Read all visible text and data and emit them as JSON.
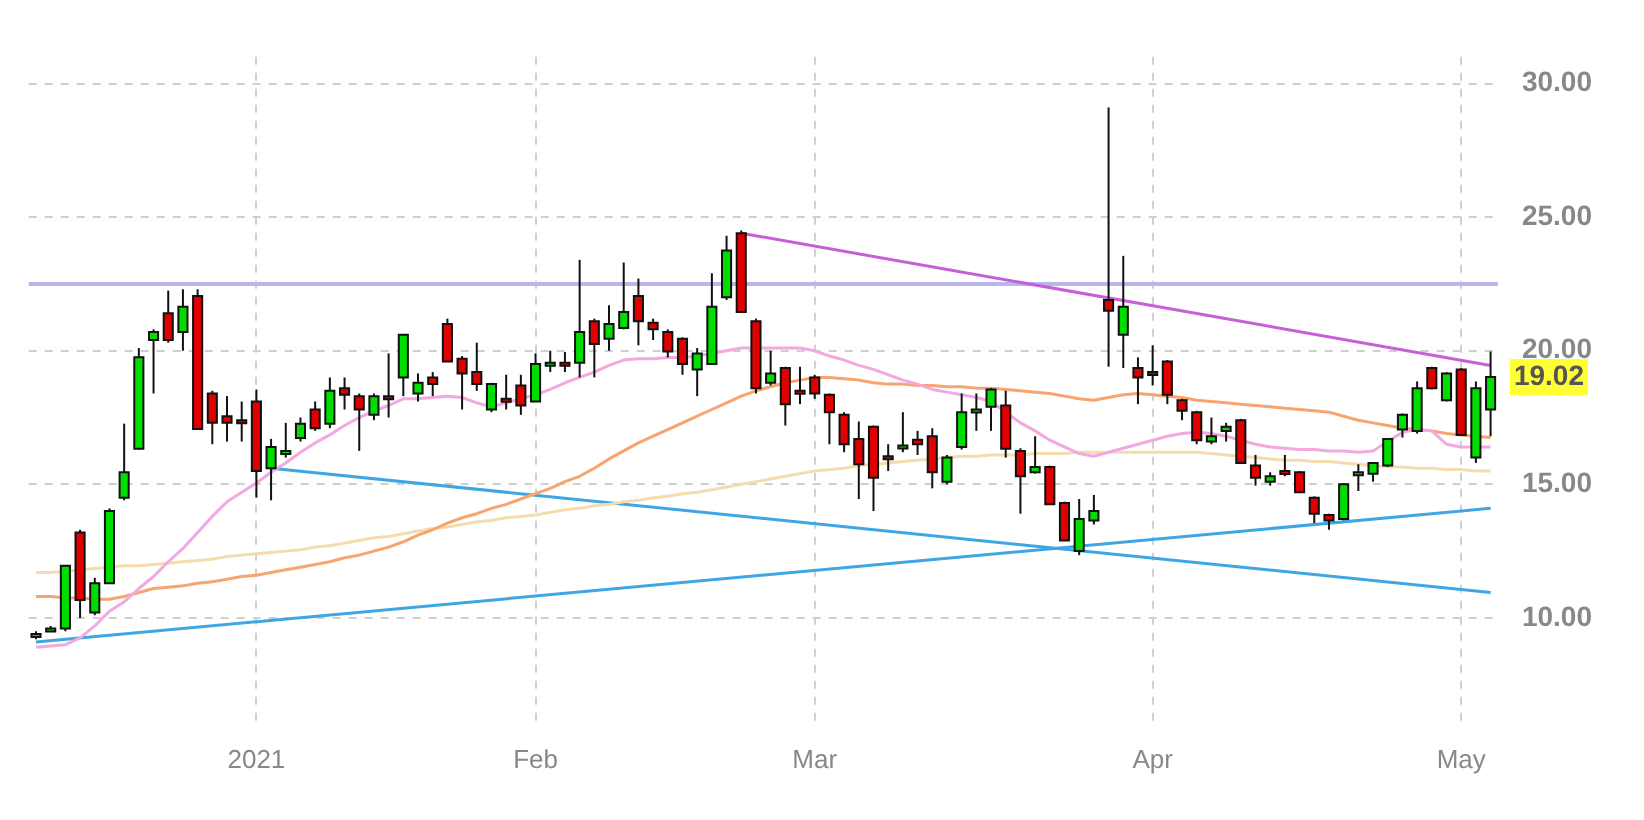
{
  "chart_data": {
    "type": "candlestick",
    "categories": [
      null,
      null,
      null,
      null,
      null,
      null,
      null,
      null,
      null,
      null,
      null,
      null,
      null,
      null,
      null,
      "2021",
      null,
      null,
      null,
      null,
      null,
      null,
      null,
      null,
      null,
      null,
      null,
      null,
      null,
      null,
      null,
      null,
      null,
      null,
      "Feb",
      null,
      null,
      null,
      null,
      null,
      null,
      null,
      null,
      null,
      null,
      null,
      null,
      null,
      null,
      null,
      null,
      null,
      null,
      "Mar",
      null,
      null,
      null,
      null,
      null,
      null,
      null,
      null,
      null,
      null,
      null,
      null,
      null,
      null,
      null,
      null,
      null,
      null,
      null,
      null,
      null,
      null,
      "Apr",
      null,
      null,
      null,
      null,
      null,
      null,
      null,
      null,
      null,
      null,
      null,
      null,
      null,
      null,
      null,
      null,
      null,
      null,
      null,
      null,
      "May",
      null,
      null
    ],
    "ohlc": [
      [
        9.3,
        9.5,
        9.2,
        9.4
      ],
      [
        9.55,
        9.7,
        9.5,
        9.6
      ],
      [
        9.6,
        11.95,
        9.5,
        11.95
      ],
      [
        13.2,
        13.3,
        10.0,
        10.67
      ],
      [
        10.2,
        11.5,
        10.1,
        11.3
      ],
      [
        11.3,
        14.1,
        11.3,
        14.0
      ],
      [
        14.5,
        17.27,
        14.4,
        15.45
      ],
      [
        16.33,
        20.1,
        16.3,
        19.76
      ],
      [
        20.4,
        20.8,
        18.4,
        20.7
      ],
      [
        21.4,
        22.25,
        20.3,
        20.4
      ],
      [
        20.7,
        22.3,
        20.0,
        21.65
      ],
      [
        22.05,
        22.3,
        17.07,
        17.07
      ],
      [
        18.4,
        18.5,
        16.5,
        17.3
      ],
      [
        17.55,
        18.3,
        16.6,
        17.3
      ],
      [
        17.4,
        18.1,
        16.6,
        17.35
      ],
      [
        18.1,
        18.55,
        14.5,
        15.5
      ],
      [
        15.6,
        16.7,
        14.4,
        16.4
      ],
      [
        16.2,
        17.3,
        16.0,
        16.25
      ],
      [
        16.73,
        17.5,
        16.6,
        17.27
      ],
      [
        17.8,
        18.1,
        17.0,
        17.1
      ],
      [
        17.27,
        19.0,
        17.1,
        18.5
      ],
      [
        18.6,
        19.0,
        17.8,
        18.35
      ],
      [
        18.3,
        18.4,
        16.25,
        17.8
      ],
      [
        17.6,
        18.4,
        17.4,
        18.3
      ],
      [
        18.3,
        19.9,
        17.5,
        18.25
      ],
      [
        19.0,
        20.6,
        18.3,
        20.6
      ],
      [
        18.4,
        19.15,
        18.1,
        18.8
      ],
      [
        19.0,
        19.2,
        18.3,
        18.75
      ],
      [
        21.0,
        21.2,
        19.6,
        19.6
      ],
      [
        19.7,
        19.8,
        17.8,
        19.15
      ],
      [
        19.2,
        20.3,
        18.5,
        18.75
      ],
      [
        17.8,
        18.8,
        17.7,
        18.75
      ],
      [
        18.2,
        19.1,
        17.8,
        18.15
      ],
      [
        18.7,
        19.1,
        17.6,
        17.95
      ],
      [
        18.1,
        19.9,
        18.1,
        19.5
      ],
      [
        19.5,
        20.0,
        19.2,
        19.55
      ],
      [
        19.55,
        19.95,
        19.2,
        19.5
      ],
      [
        19.55,
        23.4,
        19.0,
        20.7
      ],
      [
        21.1,
        21.2,
        19.0,
        20.25
      ],
      [
        20.45,
        21.7,
        20.0,
        21.0
      ],
      [
        20.85,
        23.3,
        20.8,
        21.45
      ],
      [
        22.05,
        22.7,
        20.2,
        21.1
      ],
      [
        21.05,
        21.2,
        20.4,
        20.8
      ],
      [
        20.7,
        20.8,
        19.75,
        19.97
      ],
      [
        20.45,
        20.5,
        19.1,
        19.5
      ],
      [
        19.3,
        20.1,
        18.3,
        19.9
      ],
      [
        19.5,
        22.9,
        19.5,
        21.65
      ],
      [
        22.0,
        24.3,
        21.9,
        23.75
      ],
      [
        24.4,
        24.5,
        21.45,
        21.45
      ],
      [
        21.1,
        21.2,
        18.4,
        18.6
      ],
      [
        18.8,
        20.0,
        18.7,
        19.15
      ],
      [
        19.35,
        19.4,
        17.2,
        18.0
      ],
      [
        18.5,
        19.4,
        18.0,
        18.45
      ],
      [
        19.0,
        19.1,
        18.2,
        18.4
      ],
      [
        18.35,
        18.4,
        16.5,
        17.7
      ],
      [
        17.6,
        17.7,
        16.2,
        16.5
      ],
      [
        16.7,
        17.35,
        14.45,
        15.75
      ],
      [
        17.15,
        17.2,
        14.0,
        15.25
      ],
      [
        16.05,
        16.5,
        15.5,
        16.0
      ],
      [
        16.4,
        17.7,
        16.2,
        16.45
      ],
      [
        16.67,
        17.0,
        16.1,
        16.5
      ],
      [
        16.8,
        17.1,
        14.85,
        15.45
      ],
      [
        15.1,
        16.1,
        15.0,
        16.0
      ],
      [
        16.4,
        18.4,
        16.3,
        17.7
      ],
      [
        17.75,
        18.4,
        17.0,
        17.8
      ],
      [
        17.9,
        18.6,
        17.0,
        18.55
      ],
      [
        17.95,
        18.5,
        16.0,
        16.33
      ],
      [
        16.25,
        16.35,
        13.9,
        15.3
      ],
      [
        15.45,
        16.8,
        15.4,
        15.65
      ],
      [
        15.65,
        15.7,
        14.25,
        14.25
      ],
      [
        14.3,
        14.35,
        12.9,
        12.9
      ],
      [
        12.5,
        14.45,
        12.35,
        13.7
      ],
      [
        13.65,
        14.6,
        13.5,
        14.0
      ],
      [
        21.9,
        29.1,
        19.4,
        21.5
      ],
      [
        20.6,
        23.55,
        19.35,
        21.65
      ],
      [
        19.35,
        19.75,
        18.0,
        19.0
      ],
      [
        19.2,
        20.2,
        18.7,
        19.15
      ],
      [
        19.6,
        19.65,
        18.0,
        18.35
      ],
      [
        18.15,
        18.2,
        17.4,
        17.75
      ],
      [
        17.7,
        17.75,
        16.5,
        16.65
      ],
      [
        16.6,
        17.5,
        16.5,
        16.8
      ],
      [
        17.0,
        17.3,
        16.6,
        17.15
      ],
      [
        17.4,
        17.45,
        15.8,
        15.8
      ],
      [
        15.7,
        16.1,
        14.95,
        15.25
      ],
      [
        15.1,
        15.45,
        14.95,
        15.3
      ],
      [
        15.5,
        16.1,
        15.3,
        15.45
      ],
      [
        15.45,
        15.5,
        14.7,
        14.7
      ],
      [
        14.5,
        14.55,
        13.55,
        13.9
      ],
      [
        13.85,
        13.9,
        13.3,
        13.65
      ],
      [
        13.7,
        15.05,
        13.65,
        15.0
      ],
      [
        15.4,
        15.75,
        14.75,
        15.45
      ],
      [
        15.4,
        15.8,
        15.1,
        15.8
      ],
      [
        15.7,
        16.7,
        15.65,
        16.7
      ],
      [
        17.05,
        17.65,
        16.75,
        17.6
      ],
      [
        17.0,
        18.85,
        16.9,
        18.6
      ],
      [
        19.35,
        19.4,
        18.55,
        18.6
      ],
      [
        18.15,
        19.2,
        18.1,
        19.15
      ],
      [
        19.3,
        19.35,
        16.85,
        16.85
      ],
      [
        16.0,
        18.85,
        15.8,
        18.6
      ],
      [
        17.8,
        19.97,
        16.8,
        19.02
      ]
    ],
    "series": [
      {
        "type": "line",
        "color": "#f2a9e2",
        "values": [
          8.9,
          8.95,
          9.0,
          9.25,
          9.7,
          10.25,
          10.6,
          11.1,
          11.55,
          12.1,
          12.6,
          13.2,
          13.8,
          14.35,
          14.7,
          15.05,
          15.45,
          15.8,
          16.2,
          16.55,
          16.85,
          17.2,
          17.5,
          17.75,
          17.95,
          18.2,
          18.2,
          18.25,
          18.3,
          18.25,
          18.05,
          17.9,
          18.05,
          18.2,
          18.35,
          18.55,
          18.8,
          19.0,
          19.2,
          19.45,
          19.65,
          19.7,
          19.7,
          19.75,
          19.75,
          19.8,
          19.9,
          20.0,
          20.1,
          20.1,
          20.1,
          20.1,
          20.1,
          20.0,
          19.8,
          19.65,
          19.45,
          19.3,
          19.1,
          18.9,
          18.75,
          18.55,
          18.45,
          18.35,
          18.25,
          18.1,
          17.7,
          17.3,
          17.0,
          16.65,
          16.4,
          16.15,
          16.05,
          16.2,
          16.35,
          16.5,
          16.65,
          16.8,
          16.9,
          16.95,
          16.9,
          16.8,
          16.65,
          16.5,
          16.4,
          16.35,
          16.3,
          16.3,
          16.25,
          16.25,
          16.2,
          16.25,
          16.6,
          16.95,
          17.05,
          17.0,
          16.5,
          16.4,
          16.4,
          16.4
        ]
      },
      {
        "type": "line",
        "color": "#f7a46e",
        "values": [
          10.8,
          10.8,
          10.75,
          10.75,
          10.7,
          10.7,
          10.8,
          10.95,
          11.1,
          11.15,
          11.2,
          11.3,
          11.35,
          11.45,
          11.55,
          11.6,
          11.7,
          11.8,
          11.9,
          12.0,
          12.1,
          12.25,
          12.35,
          12.5,
          12.65,
          12.85,
          13.1,
          13.3,
          13.55,
          13.75,
          13.9,
          14.1,
          14.25,
          14.45,
          14.65,
          14.85,
          15.1,
          15.3,
          15.6,
          15.95,
          16.25,
          16.55,
          16.8,
          17.05,
          17.3,
          17.55,
          17.8,
          18.05,
          18.3,
          18.5,
          18.65,
          18.8,
          18.9,
          19.0,
          19.0,
          18.95,
          18.9,
          18.8,
          18.75,
          18.75,
          18.7,
          18.7,
          18.65,
          18.65,
          18.6,
          18.6,
          18.55,
          18.5,
          18.45,
          18.4,
          18.3,
          18.2,
          18.15,
          18.25,
          18.35,
          18.4,
          18.35,
          18.3,
          18.25,
          18.15,
          18.1,
          18.05,
          18.0,
          17.95,
          17.9,
          17.85,
          17.8,
          17.75,
          17.7,
          17.55,
          17.4,
          17.3,
          17.2,
          17.1,
          17.05,
          17.0,
          16.9,
          16.85,
          16.8,
          16.75
        ]
      },
      {
        "type": "line",
        "color": "#f5dcad",
        "values": [
          11.7,
          11.7,
          11.75,
          11.8,
          11.85,
          11.9,
          11.95,
          11.95,
          12.0,
          12.05,
          12.1,
          12.15,
          12.2,
          12.3,
          12.35,
          12.4,
          12.45,
          12.5,
          12.55,
          12.65,
          12.7,
          12.8,
          12.9,
          13.0,
          13.05,
          13.15,
          13.25,
          13.35,
          13.4,
          13.5,
          13.6,
          13.65,
          13.75,
          13.8,
          13.85,
          13.95,
          14.05,
          14.1,
          14.2,
          14.25,
          14.35,
          14.4,
          14.5,
          14.55,
          14.65,
          14.7,
          14.8,
          14.9,
          15.0,
          15.1,
          15.2,
          15.3,
          15.4,
          15.5,
          15.55,
          15.6,
          15.7,
          15.75,
          15.8,
          15.85,
          15.9,
          15.95,
          16.0,
          16.05,
          16.05,
          16.1,
          16.1,
          16.1,
          16.15,
          16.15,
          16.15,
          16.2,
          16.2,
          16.2,
          16.2,
          16.2,
          16.2,
          16.2,
          16.2,
          16.2,
          16.15,
          16.1,
          16.05,
          16.0,
          15.95,
          15.9,
          15.9,
          15.85,
          15.85,
          15.8,
          15.75,
          15.7,
          15.65,
          15.65,
          15.6,
          15.6,
          15.55,
          15.55,
          15.5,
          15.5
        ]
      },
      {
        "type": "line",
        "color": "#c75fd6",
        "values": [
          null,
          null,
          null,
          null,
          null,
          null,
          null,
          null,
          null,
          null,
          null,
          null,
          null,
          null,
          null,
          null,
          null,
          null,
          null,
          null,
          null,
          null,
          null,
          null,
          null,
          null,
          null,
          null,
          null,
          null,
          null,
          null,
          null,
          null,
          null,
          null,
          null,
          null,
          null,
          null,
          null,
          null,
          null,
          null,
          null,
          null,
          null,
          null,
          24.4,
          null,
          null,
          null,
          null,
          null,
          null,
          null,
          null,
          null,
          null,
          null,
          null,
          null,
          null,
          null,
          null,
          null,
          null,
          null,
          null,
          null,
          null,
          null,
          null,
          null,
          null,
          null,
          null,
          null,
          null,
          null,
          null,
          null,
          null,
          null,
          null,
          null,
          null,
          null,
          null,
          null,
          null,
          null,
          null,
          null,
          null,
          null,
          null,
          null,
          null,
          19.45
        ]
      },
      {
        "type": "line",
        "color": "#3ea6e3",
        "values": [
          null,
          null,
          null,
          null,
          null,
          null,
          null,
          null,
          null,
          null,
          null,
          null,
          null,
          null,
          null,
          null,
          15.6,
          null,
          null,
          null,
          null,
          null,
          null,
          null,
          null,
          null,
          null,
          null,
          null,
          null,
          null,
          null,
          null,
          null,
          null,
          null,
          null,
          null,
          null,
          null,
          null,
          null,
          null,
          null,
          null,
          null,
          null,
          null,
          null,
          null,
          null,
          null,
          null,
          null,
          null,
          null,
          null,
          null,
          null,
          null,
          null,
          null,
          null,
          null,
          null,
          null,
          null,
          null,
          null,
          null,
          null,
          null,
          null,
          null,
          null,
          null,
          null,
          null,
          null,
          null,
          null,
          null,
          null,
          null,
          null,
          null,
          null,
          null,
          null,
          null,
          null,
          null,
          null,
          null,
          null,
          null,
          null,
          null,
          null,
          10.95
        ]
      },
      {
        "type": "line",
        "color": "#3ea6e3",
        "values": [
          9.1,
          null,
          null,
          null,
          null,
          null,
          null,
          null,
          null,
          null,
          null,
          null,
          null,
          null,
          null,
          null,
          null,
          null,
          null,
          null,
          null,
          null,
          null,
          null,
          null,
          null,
          null,
          null,
          null,
          null,
          null,
          null,
          null,
          null,
          null,
          null,
          null,
          null,
          null,
          null,
          null,
          null,
          null,
          null,
          null,
          null,
          null,
          null,
          null,
          null,
          null,
          null,
          null,
          null,
          null,
          null,
          null,
          null,
          null,
          null,
          null,
          null,
          null,
          null,
          null,
          null,
          null,
          null,
          null,
          null,
          null,
          null,
          null,
          null,
          null,
          null,
          null,
          null,
          null,
          null,
          null,
          null,
          null,
          null,
          null,
          null,
          null,
          null,
          null,
          null,
          null,
          null,
          null,
          null,
          null,
          null,
          null,
          null,
          null,
          14.1
        ]
      }
    ],
    "ref_lines": [
      {
        "axis": "y",
        "value": 22.5,
        "color": "#b7b7ee"
      }
    ],
    "annotations": [
      "19.02"
    ],
    "ylim": [
      6,
      31
    ],
    "yticks": [
      {
        "value": 10,
        "label": "10.00"
      },
      {
        "value": 15,
        "label": "15.00"
      },
      {
        "value": 20,
        "label": "20.00"
      },
      {
        "value": 25,
        "label": "25.00"
      },
      {
        "value": 30,
        "label": "30.00"
      }
    ],
    "grid": true
  }
}
